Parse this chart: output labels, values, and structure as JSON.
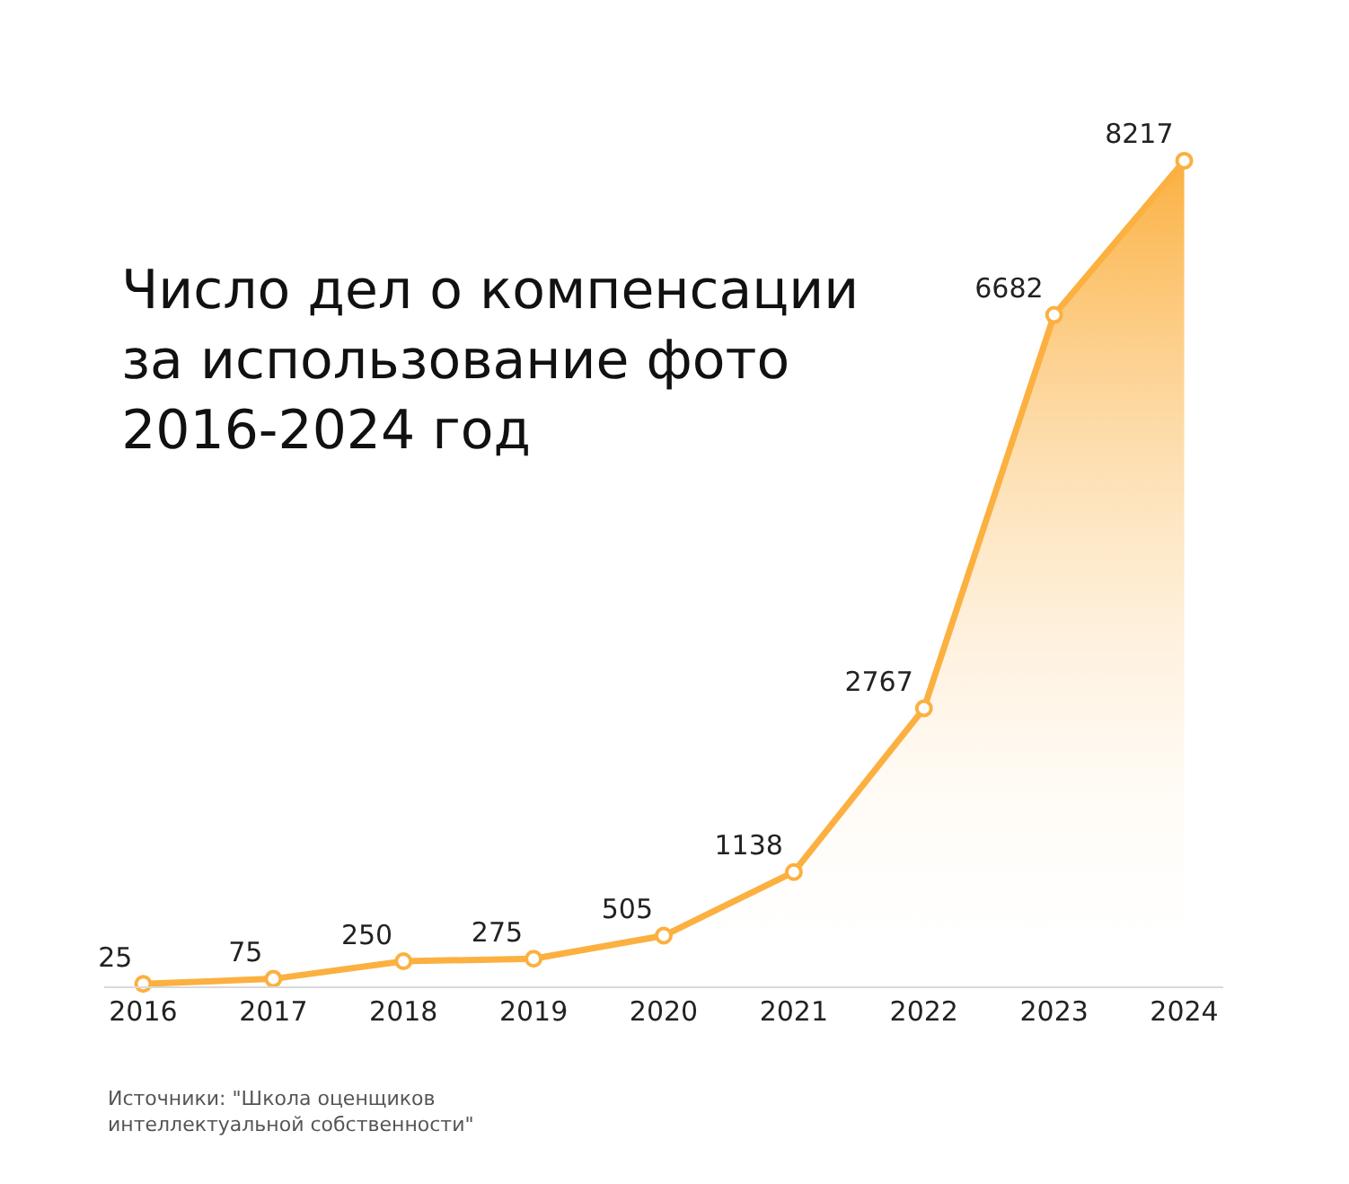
{
  "chart_data": {
    "type": "area",
    "title": "Число дел о компенсации\nза использование фото\n2016-2024 год",
    "x": [
      2016,
      2017,
      2018,
      2019,
      2020,
      2021,
      2022,
      2023,
      2024
    ],
    "series": [
      {
        "color": "#fbb040",
        "values": [
          25,
          75,
          250,
          275,
          505,
          1138,
          2767,
          6682,
          8217
        ]
      }
    ],
    "xlim": [
      2015.7,
      2024.3
    ],
    "xticks": [
      2016,
      2017,
      2018,
      2019,
      2020,
      2021,
      2022,
      2023,
      2024
    ],
    "tick_labels": "x",
    "marker": "circle",
    "line_style": "solid",
    "data_labels": true,
    "annotations": [
      "Источники: \"Школа оценщиков\nинтеллектуальной собственности\""
    ]
  }
}
